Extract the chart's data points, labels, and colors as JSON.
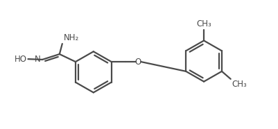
{
  "bg_color": "#ffffff",
  "line_color": "#4a4a4a",
  "line_width": 1.6,
  "font_size": 8.5,
  "fig_width": 4.01,
  "fig_height": 1.86,
  "dpi": 100,
  "xlim": [
    0,
    10
  ],
  "ylim": [
    0,
    4.65
  ]
}
